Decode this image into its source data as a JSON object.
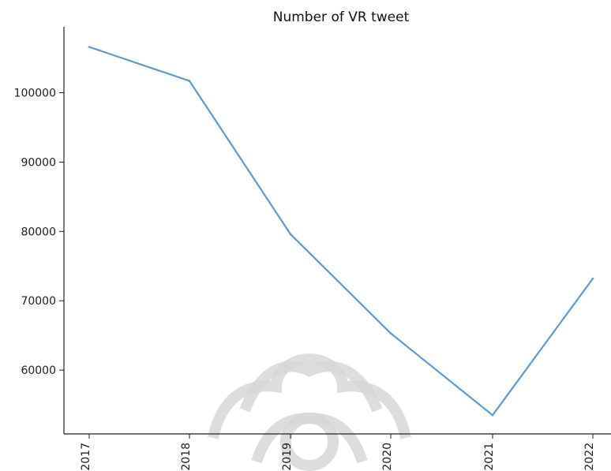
{
  "chart_data": {
    "type": "line",
    "title": "Number of VR tweet",
    "xlabel": "",
    "ylabel": "",
    "categories": [
      "2017",
      "2018",
      "2019",
      "2020",
      "2021",
      "2022"
    ],
    "series": [
      {
        "values": [
          106600,
          101700,
          79600,
          65300,
          53500,
          73200
        ]
      }
    ],
    "ylim": [
      50800,
      109500
    ],
    "yticks": [
      60000,
      70000,
      80000,
      90000,
      100000
    ],
    "ytick_labels": [
      "60000",
      "70000",
      "80000",
      "90000",
      "100000"
    ],
    "line_color": "#5b9bd5",
    "grid": false,
    "legend": "none",
    "x_tick_rotation": "vertical"
  }
}
